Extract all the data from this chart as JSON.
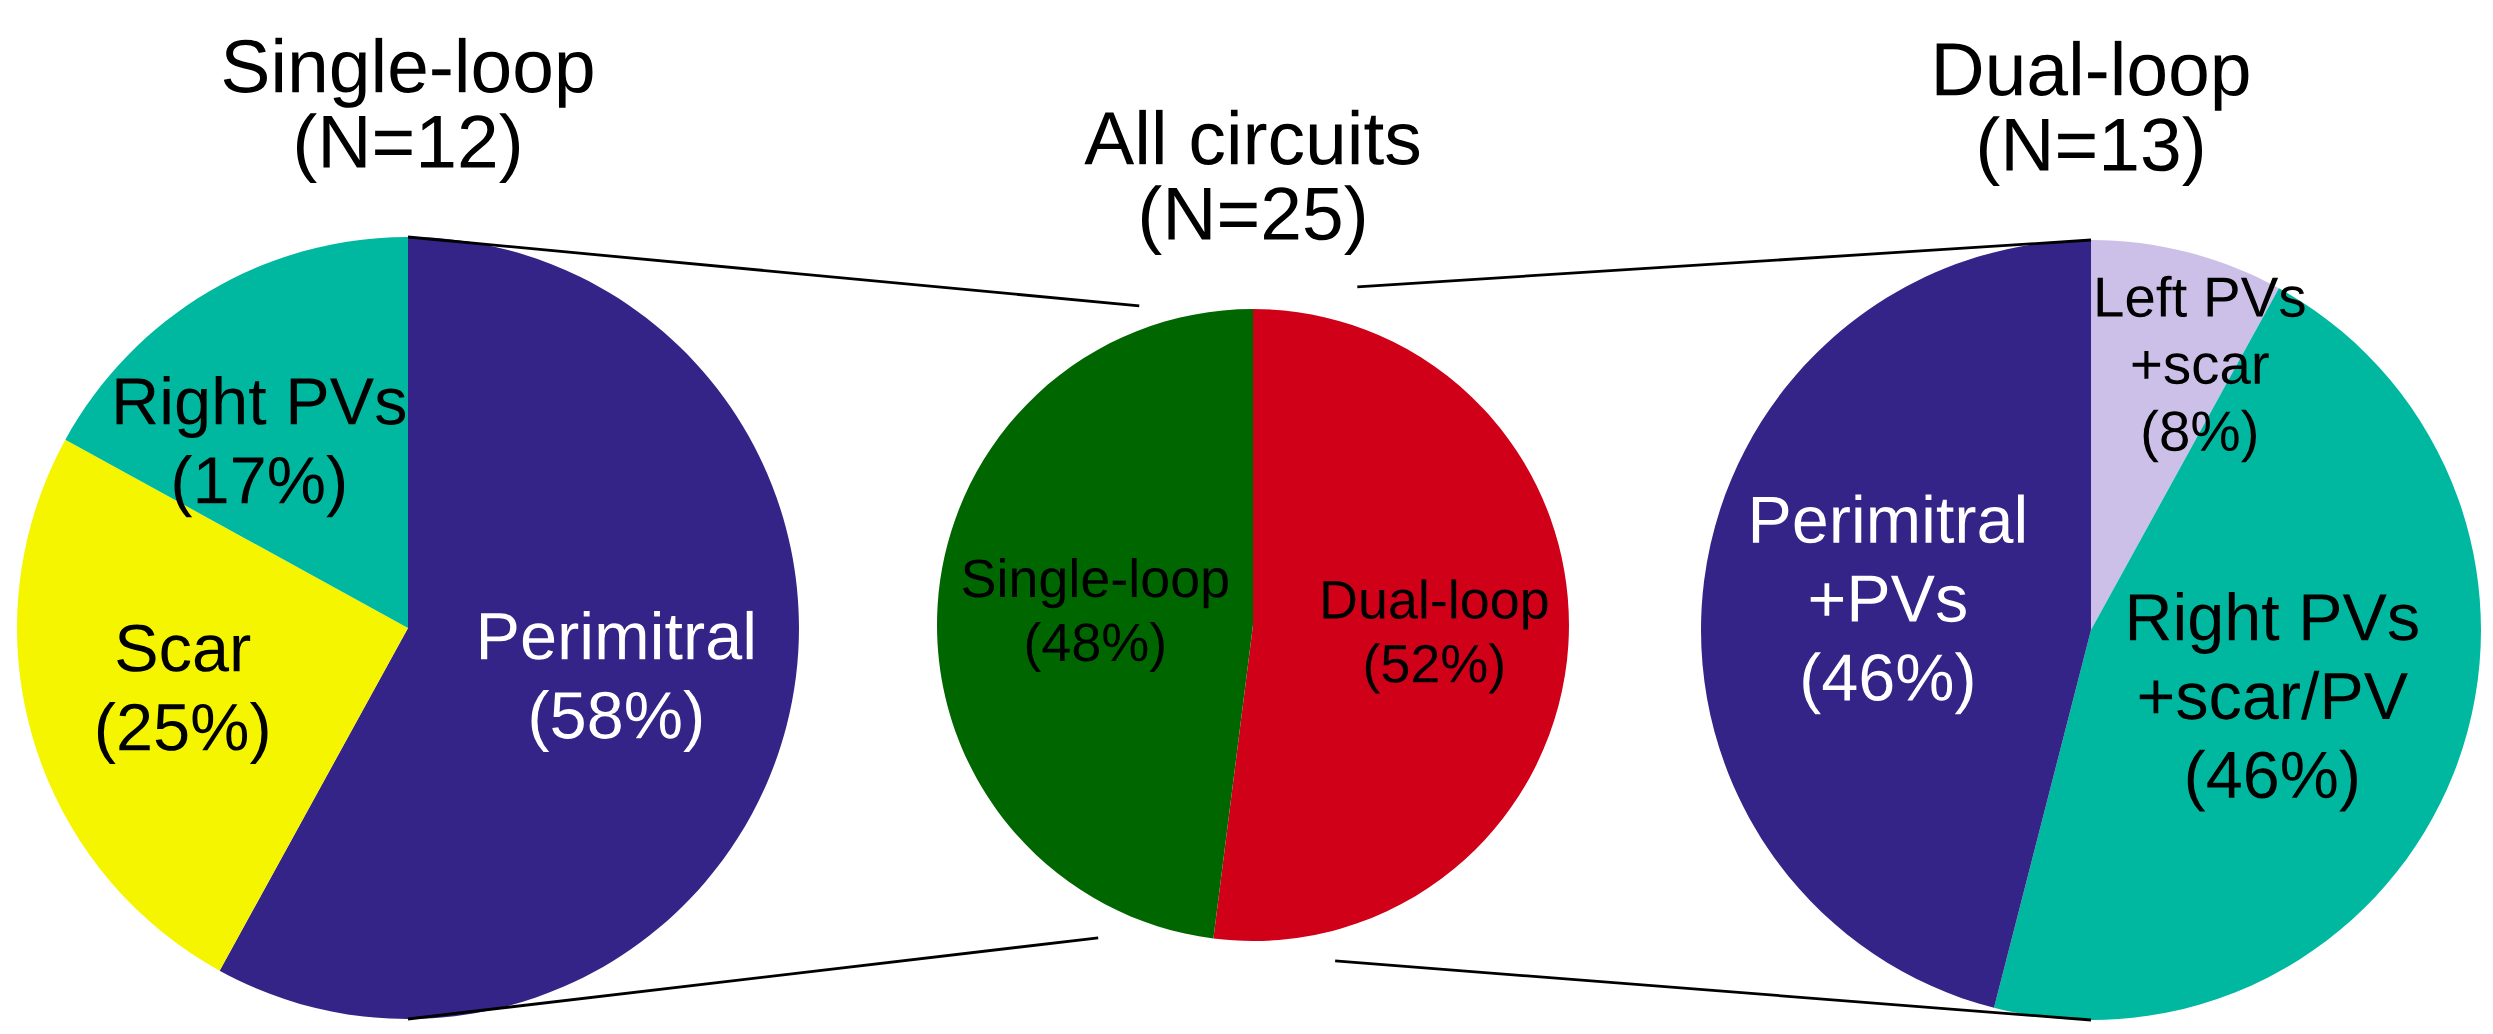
{
  "chart_data": [
    {
      "type": "pie",
      "title": "Single-loop\n(N=12)",
      "categories": [
        "Perimitral",
        "Scar",
        "Right PVs"
      ],
      "values": [
        58,
        25,
        17
      ],
      "colors": [
        "#352488",
        "#f5f500",
        "#00b8a0"
      ],
      "value_labels": [
        "(58%)",
        "(25%)",
        "(17%)"
      ]
    },
    {
      "type": "pie",
      "title": "All circuits\n(N=25)",
      "categories": [
        "Dual-loop",
        "Single-loop"
      ],
      "values": [
        52,
        48
      ],
      "colors": [
        "#d00018",
        "#006600"
      ],
      "value_labels": [
        "(52%)",
        "(48%)"
      ]
    },
    {
      "type": "pie",
      "title": "Dual-loop\n(N=13)",
      "categories": [
        "Left PVs\n+scar",
        "Right PVs\n+scar/PV",
        "Perimitral\n+PVs"
      ],
      "values": [
        8,
        46,
        46
      ],
      "colors": [
        "#ccc0e8",
        "#00b8a0",
        "#352488"
      ],
      "value_labels": [
        "(8%)",
        "(46%)",
        "(46%)"
      ]
    }
  ]
}
